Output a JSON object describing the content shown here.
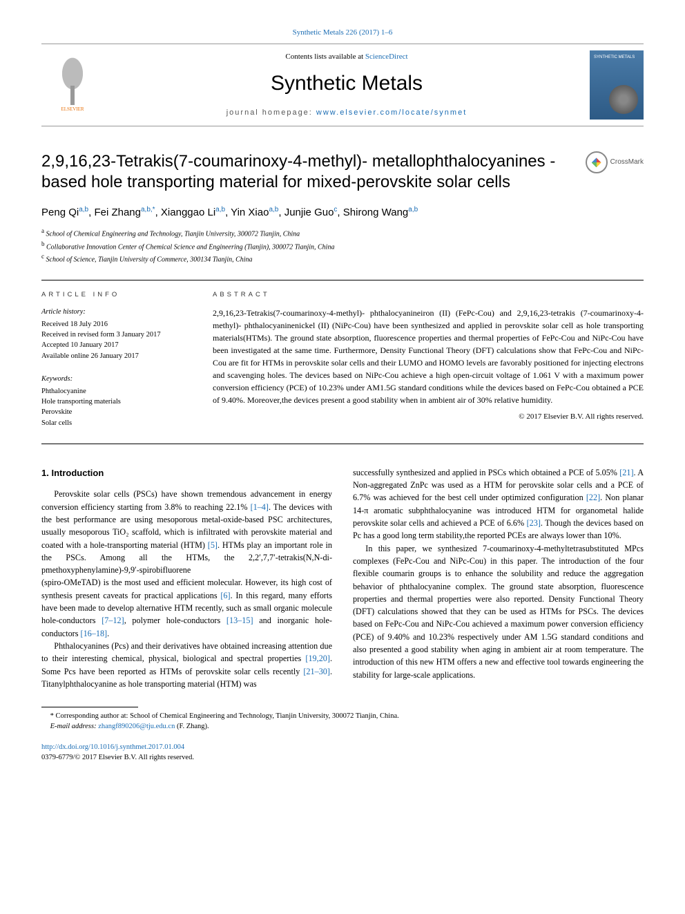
{
  "header": {
    "topLink": "Synthetic Metals 226 (2017) 1–6",
    "contentsPrefix": "Contents lists available at ",
    "contentsLink": "ScienceDirect",
    "journal": "Synthetic Metals",
    "homepageLabel": "journal homepage: ",
    "homepageUrl": "www.elsevier.com/locate/synmet",
    "elsevierLabel": "ELSEVIER",
    "coverTitle": "SYNTHETIC METALS"
  },
  "article": {
    "title": "2,9,16,23-Tetrakis(7-coumarinoxy-4-methyl)- metallophthalocyanines -based hole transporting material for mixed-perovskite solar cells",
    "crossmarkLabel": "CrossMark"
  },
  "authors": [
    {
      "name": "Peng Qi",
      "affs": "a,b"
    },
    {
      "name": "Fei Zhang",
      "affs": "a,b,*"
    },
    {
      "name": "Xianggao Li",
      "affs": "a,b"
    },
    {
      "name": "Yin Xiao",
      "affs": "a,b"
    },
    {
      "name": "Junjie Guo",
      "affs": "c"
    },
    {
      "name": "Shirong Wang",
      "affs": "a,b"
    }
  ],
  "affiliations": {
    "a": "School of Chemical Engineering and Technology, Tianjin University, 300072 Tianjin, China",
    "b": "Collaborative Innovation Center of Chemical Science and Engineering (Tianjin), 300072 Tianjin, China",
    "c": "School of Science, Tianjin University of Commerce, 300134 Tianjin, China"
  },
  "articleInfo": {
    "sectionLabel": "article info",
    "historyHead": "Article history:",
    "history": [
      "Received 18 July 2016",
      "Received in revised form 3 January 2017",
      "Accepted 10 January 2017",
      "Available online 26 January 2017"
    ],
    "keywordsHead": "Keywords:",
    "keywords": [
      "Phthalocyanine",
      "Hole transporting materials",
      "Perovskite",
      "Solar cells"
    ]
  },
  "abstract": {
    "sectionLabel": "abstract",
    "text": "2,9,16,23-Tetrakis(7-coumarinoxy-4-methyl)- phthalocyanineiron (II) (FePc-Cou) and 2,9,16,23-tetrakis (7-coumarinoxy-4-methyl)- phthalocyaninenickel (II) (NiPc-Cou) have been synthesized and applied in perovskite solar cell as hole transporting materials(HTMs). The ground state absorption, fluorescence properties and thermal properties of FePc-Cou and NiPc-Cou have been investigated at the same time. Furthermore, Density Functional Theory (DFT) calculations show that FePc-Cou and NiPc-Cou are fit for HTMs in perovskite solar cells and their LUMO and HOMO levels are favorably positioned for injecting electrons and scavenging holes. The devices based on NiPc-Cou achieve a high open-circuit voltage of 1.061 V with a maximum power conversion efficiency (PCE) of 10.23% under AM1.5G standard conditions while the devices based on FePc-Cou obtained a PCE of 9.40%. Moreover,the devices present a good stability when in ambient air of 30% relative humidity.",
    "copyright": "© 2017 Elsevier B.V. All rights reserved."
  },
  "intro": {
    "heading": "1. Introduction",
    "p1a": "Perovskite solar cells (PSCs) have shown tremendous advancement in energy conversion efficiency starting from 3.8% to reaching 22.1% ",
    "p1ref1": "[1–4]",
    "p1b": ". The devices with the best performance are using mesoporous metal-oxide-based PSC architectures, usually mesoporous TiO₂ scaffold, which is infiltrated with perovskite material and coated with a hole-transporting material (HTM) ",
    "p1ref2": "[5]",
    "p1c": ". HTMs play an important role in the PSCs. Among all the HTMs, the 2,2′,7,7′-tetrakis(N,N-di-pmethoxyphenylamine)-9,9′-spirobifluorene",
    "p1d": "(spiro-OMeTAD) is the most used and efficient molecular. However, its high cost of synthesis present caveats for practical applications ",
    "p1ref3": "[6]",
    "p1e": ". In this regard, many efforts have been made to develop alternative HTM recently, such as small organic molecule hole-conductors ",
    "p1ref4": "[7–12]",
    "p1f": ", polymer hole-conductors ",
    "p1ref5": "[13–15]",
    "p1g": " and inorganic hole-conductors ",
    "p1ref6": "[16–18]",
    "p1h": ".",
    "p2a": "Phthalocyanines (Pcs) and their derivatives have obtained increasing attention due to their interesting chemical, physical, biological and spectral properties ",
    "p2ref1": "[19,20]",
    "p2b": ". Some Pcs have been reported as HTMs of perovskite solar cells recently ",
    "p2ref2": "[21–30]",
    "p2c": ". Titanylphthalocyanine as hole transporting material (HTM) was",
    "p3a": "successfully synthesized and applied in PSCs which obtained a PCE of 5.05% ",
    "p3ref1": "[21]",
    "p3b": ". A Non-aggregated ZnPc was used as a HTM for perovskite solar cells and a PCE of 6.7% was achieved for the best cell under optimized configuration ",
    "p3ref2": "[22]",
    "p3c": ". Non planar 14-π aromatic subphthalocyanine was introduced HTM for organometal halide perovskite solar cells and achieved a PCE of 6.6% ",
    "p3ref3": "[23]",
    "p3d": ". Though the devices based on Pc has a good long term stability,the reported PCEs are always lower than 10%.",
    "p4": "In this paper, we synthesized 7-coumarinoxy-4-methyltetrasubstituted MPcs complexes (FePc-Cou and NiPc-Cou) in this paper. The introduction of the four flexible coumarin groups is to enhance the solubility and reduce the aggregation behavior of phthalocyanine complex. The ground state absorption, fluorescence properties and thermal properties were also reported. Density Functional Theory (DFT) calculations showed that they can be used as HTMs for PSCs. The devices based on FePc-Cou and NiPc-Cou achieved a maximum power conversion efficiency (PCE) of 9.40% and 10.23% respectively under AM 1.5G standard conditions and also presented a good stability when aging in ambient air at room temperature. The introduction of this new HTM offers a new and effective tool towards engineering the stability for large-scale applications."
  },
  "footnotes": {
    "corr": "* Corresponding author at: School of Chemical Engineering and Technology, Tianjin University, 300072 Tianjin, China.",
    "emailLabel": "E-mail address: ",
    "email": "zhangf890206@tju.edu.cn",
    "emailSuffix": " (F. Zhang)."
  },
  "doi": {
    "url": "http://dx.doi.org/10.1016/j.synthmet.2017.01.004",
    "line2": "0379-6779/© 2017 Elsevier B.V. All rights reserved."
  },
  "colors": {
    "link": "#1a6cb3",
    "elsevier": "#e8720c",
    "text": "#000000",
    "background": "#ffffff"
  }
}
